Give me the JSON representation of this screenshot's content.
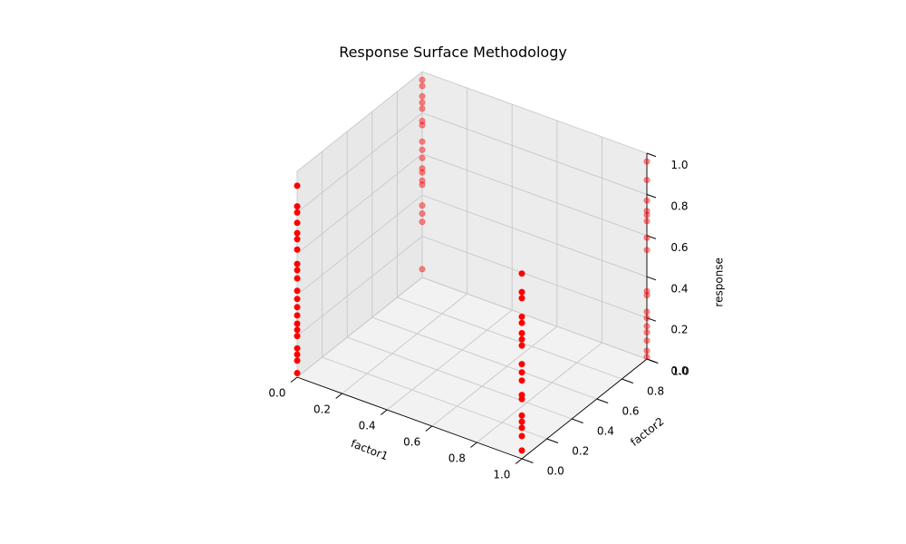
{
  "chart_data": {
    "type": "scatter",
    "projection": "3d",
    "title": "Response Surface Methodology",
    "xlabel": "factor1",
    "ylabel": "factor2",
    "zlabel": "response",
    "xlim": [
      0,
      1
    ],
    "ylim": [
      0,
      1
    ],
    "zlim": [
      0,
      1
    ],
    "xticks": [
      "0.0",
      "0.2",
      "0.4",
      "0.6",
      "0.8",
      "1.0"
    ],
    "yticks": [
      "0.0",
      "0.2",
      "0.4",
      "0.6",
      "0.8",
      "1.0"
    ],
    "zticks": [
      "0.0",
      "0.2",
      "0.4",
      "0.6",
      "0.8",
      "1.0"
    ],
    "grid": true,
    "marker_color": "#ff0000",
    "series": [
      {
        "points": [
          {
            "x": 0,
            "y": 0,
            "z": 0.02
          },
          {
            "x": 0,
            "y": 0,
            "z": 0.08
          },
          {
            "x": 0,
            "y": 0,
            "z": 0.11
          },
          {
            "x": 0,
            "y": 0,
            "z": 0.14
          },
          {
            "x": 0,
            "y": 0,
            "z": 0.2
          },
          {
            "x": 0,
            "y": 0,
            "z": 0.23
          },
          {
            "x": 0,
            "y": 0,
            "z": 0.26
          },
          {
            "x": 0,
            "y": 0,
            "z": 0.3
          },
          {
            "x": 0,
            "y": 0,
            "z": 0.34
          },
          {
            "x": 0,
            "y": 0,
            "z": 0.38
          },
          {
            "x": 0,
            "y": 0,
            "z": 0.42
          },
          {
            "x": 0,
            "y": 0,
            "z": 0.48
          },
          {
            "x": 0,
            "y": 0,
            "z": 0.52
          },
          {
            "x": 0,
            "y": 0,
            "z": 0.55
          },
          {
            "x": 0,
            "y": 0,
            "z": 0.62
          },
          {
            "x": 0,
            "y": 0,
            "z": 0.67
          },
          {
            "x": 0,
            "y": 0,
            "z": 0.7
          },
          {
            "x": 0,
            "y": 0,
            "z": 0.75
          },
          {
            "x": 0,
            "y": 0,
            "z": 0.8
          },
          {
            "x": 0,
            "y": 0,
            "z": 0.83
          },
          {
            "x": 0,
            "y": 0,
            "z": 0.93
          },
          {
            "x": 1,
            "y": 0,
            "z": 0.04
          },
          {
            "x": 1,
            "y": 0,
            "z": 0.11
          },
          {
            "x": 1,
            "y": 0,
            "z": 0.15
          },
          {
            "x": 1,
            "y": 0,
            "z": 0.18
          },
          {
            "x": 1,
            "y": 0,
            "z": 0.21
          },
          {
            "x": 1,
            "y": 0,
            "z": 0.29
          },
          {
            "x": 1,
            "y": 0,
            "z": 0.31
          },
          {
            "x": 1,
            "y": 0,
            "z": 0.38
          },
          {
            "x": 1,
            "y": 0,
            "z": 0.42
          },
          {
            "x": 1,
            "y": 0,
            "z": 0.46
          },
          {
            "x": 1,
            "y": 0,
            "z": 0.55
          },
          {
            "x": 1,
            "y": 0,
            "z": 0.58
          },
          {
            "x": 1,
            "y": 0,
            "z": 0.61
          },
          {
            "x": 1,
            "y": 0,
            "z": 0.66
          },
          {
            "x": 1,
            "y": 0,
            "z": 0.69
          },
          {
            "x": 1,
            "y": 0,
            "z": 0.78
          },
          {
            "x": 1,
            "y": 0,
            "z": 0.81
          },
          {
            "x": 1,
            "y": 0,
            "z": 0.9
          },
          {
            "x": 0,
            "y": 1,
            "z": 0.04
          },
          {
            "x": 0,
            "y": 1,
            "z": 0.27
          },
          {
            "x": 0,
            "y": 1,
            "z": 0.31
          },
          {
            "x": 0,
            "y": 1,
            "z": 0.35
          },
          {
            "x": 0,
            "y": 1,
            "z": 0.45
          },
          {
            "x": 0,
            "y": 1,
            "z": 0.47
          },
          {
            "x": 0,
            "y": 1,
            "z": 0.51
          },
          {
            "x": 0,
            "y": 1,
            "z": 0.53
          },
          {
            "x": 0,
            "y": 1,
            "z": 0.58
          },
          {
            "x": 0,
            "y": 1,
            "z": 0.62
          },
          {
            "x": 0,
            "y": 1,
            "z": 0.66
          },
          {
            "x": 0,
            "y": 1,
            "z": 0.74
          },
          {
            "x": 0,
            "y": 1,
            "z": 0.76
          },
          {
            "x": 0,
            "y": 1,
            "z": 0.82
          },
          {
            "x": 0,
            "y": 1,
            "z": 0.85
          },
          {
            "x": 0,
            "y": 1,
            "z": 0.88
          },
          {
            "x": 0,
            "y": 1,
            "z": 0.93
          },
          {
            "x": 0,
            "y": 1,
            "z": 0.96
          },
          {
            "x": 1,
            "y": 1,
            "z": 0.01
          },
          {
            "x": 1,
            "y": 1,
            "z": 0.04
          },
          {
            "x": 1,
            "y": 1,
            "z": 0.09
          },
          {
            "x": 1,
            "y": 1,
            "z": 0.13
          },
          {
            "x": 1,
            "y": 1,
            "z": 0.16
          },
          {
            "x": 1,
            "y": 1,
            "z": 0.2
          },
          {
            "x": 1,
            "y": 1,
            "z": 0.23
          },
          {
            "x": 1,
            "y": 1,
            "z": 0.31
          },
          {
            "x": 1,
            "y": 1,
            "z": 0.33
          },
          {
            "x": 1,
            "y": 1,
            "z": 0.53
          },
          {
            "x": 1,
            "y": 1,
            "z": 0.59
          },
          {
            "x": 1,
            "y": 1,
            "z": 0.67
          },
          {
            "x": 1,
            "y": 1,
            "z": 0.7
          },
          {
            "x": 1,
            "y": 1,
            "z": 0.72
          },
          {
            "x": 1,
            "y": 1,
            "z": 0.77
          },
          {
            "x": 1,
            "y": 1,
            "z": 0.87
          },
          {
            "x": 1,
            "y": 1,
            "z": 0.96
          }
        ]
      }
    ]
  }
}
